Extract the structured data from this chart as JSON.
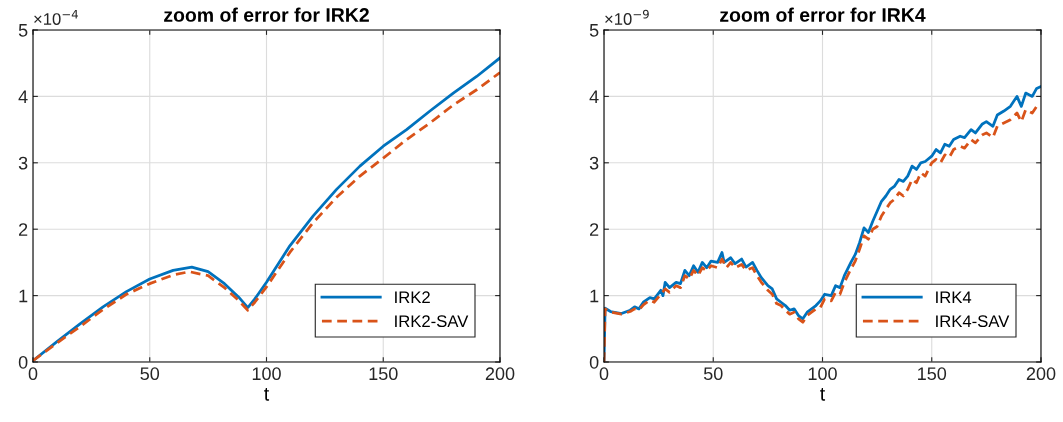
{
  "chart_data": [
    {
      "type": "line",
      "title": "zoom of error for IRK2",
      "xlabel": "t",
      "annotations": [
        "×10$^{−4}$"
      ],
      "xlim": [
        0,
        200
      ],
      "xticks": [
        0,
        50,
        100,
        150,
        200
      ],
      "ylim": [
        0,
        5
      ],
      "yticks": [
        0,
        1,
        2,
        3,
        4,
        5
      ],
      "grid": true,
      "legend": "bottom right",
      "series": [
        {
          "name": "IRK2",
          "color": "#0072bd",
          "line_style": "solid",
          "x": [
            0,
            10,
            20,
            30,
            40,
            50,
            60,
            68,
            75,
            82,
            88,
            92,
            95,
            100,
            110,
            120,
            130,
            140,
            150,
            160,
            170,
            180,
            190,
            200
          ],
          "values": [
            0.02,
            0.3,
            0.57,
            0.83,
            1.06,
            1.25,
            1.38,
            1.43,
            1.36,
            1.18,
            0.98,
            0.82,
            0.95,
            1.2,
            1.75,
            2.2,
            2.6,
            2.95,
            3.25,
            3.5,
            3.78,
            4.05,
            4.3,
            4.58
          ]
        },
        {
          "name": "IRK2-SAV",
          "color": "#d95319",
          "line_style": "dashed",
          "x": [
            0,
            10,
            20,
            30,
            40,
            50,
            60,
            67,
            75,
            82,
            88,
            92,
            95,
            100,
            110,
            120,
            130,
            140,
            150,
            160,
            170,
            180,
            190,
            200
          ],
          "values": [
            0.02,
            0.28,
            0.53,
            0.79,
            1.02,
            1.18,
            1.31,
            1.36,
            1.3,
            1.12,
            0.93,
            0.78,
            0.9,
            1.13,
            1.65,
            2.1,
            2.48,
            2.8,
            3.07,
            3.35,
            3.6,
            3.87,
            4.1,
            4.36
          ]
        }
      ]
    },
    {
      "type": "line",
      "title": "zoom of error for IRK4",
      "xlabel": "t",
      "annotations": [
        "×10$^{−9}$"
      ],
      "xlim": [
        0,
        200
      ],
      "xticks": [
        0,
        50,
        100,
        150,
        200
      ],
      "ylim": [
        0,
        5
      ],
      "yticks": [
        0,
        1,
        2,
        3,
        4,
        5
      ],
      "grid": true,
      "legend": "bottom right",
      "series": [
        {
          "name": "IRK4",
          "color": "#0072bd",
          "line_style": "solid",
          "x": [
            0,
            0.5,
            3,
            8,
            12,
            14,
            16,
            18,
            21,
            23,
            26,
            27,
            28,
            30,
            33,
            35,
            37,
            39,
            41,
            43,
            45,
            47,
            49,
            52,
            54,
            55,
            58,
            60,
            63,
            65,
            68,
            70,
            72,
            75,
            77,
            79,
            81,
            83,
            85,
            87,
            89,
            91,
            93,
            95,
            97,
            99,
            101,
            104,
            106,
            108,
            110,
            113,
            115,
            117,
            119,
            121,
            123,
            125,
            127,
            129,
            131,
            133,
            135,
            137,
            139,
            141,
            143,
            145,
            147,
            150,
            152,
            154,
            156,
            158,
            160,
            163,
            165,
            168,
            170,
            173,
            175,
            178,
            180,
            183,
            186,
            189,
            191,
            193,
            196,
            198,
            200
          ],
          "values": [
            0,
            0.81,
            0.76,
            0.73,
            0.78,
            0.83,
            0.8,
            0.9,
            0.97,
            0.95,
            1.08,
            1.0,
            1.2,
            1.12,
            1.2,
            1.18,
            1.38,
            1.3,
            1.45,
            1.35,
            1.5,
            1.42,
            1.52,
            1.5,
            1.65,
            1.5,
            1.57,
            1.48,
            1.55,
            1.43,
            1.5,
            1.38,
            1.27,
            1.15,
            1.1,
            0.95,
            0.9,
            0.85,
            0.78,
            0.8,
            0.7,
            0.65,
            0.75,
            0.8,
            0.85,
            0.92,
            1.02,
            1.0,
            1.15,
            1.12,
            1.3,
            1.5,
            1.62,
            1.8,
            2.02,
            1.95,
            2.12,
            2.27,
            2.42,
            2.5,
            2.6,
            2.65,
            2.75,
            2.72,
            2.8,
            2.95,
            2.9,
            3.0,
            3.02,
            3.1,
            3.2,
            3.15,
            3.28,
            3.25,
            3.35,
            3.4,
            3.38,
            3.5,
            3.45,
            3.58,
            3.62,
            3.55,
            3.72,
            3.78,
            3.85,
            4.0,
            3.85,
            4.05,
            4.0,
            4.12,
            4.15
          ]
        },
        {
          "name": "IRK4-SAV",
          "color": "#d95319",
          "line_style": "dashed",
          "x": [
            0,
            0.5,
            3,
            8,
            12,
            14,
            16,
            18,
            21,
            23,
            26,
            28,
            30,
            33,
            35,
            37,
            39,
            41,
            43,
            45,
            47,
            49,
            52,
            54,
            56,
            58,
            60,
            63,
            65,
            68,
            70,
            72,
            75,
            77,
            79,
            81,
            83,
            85,
            87,
            89,
            91,
            93,
            95,
            97,
            99,
            101,
            104,
            106,
            108,
            110,
            113,
            115,
            117,
            119,
            121,
            123,
            125,
            127,
            129,
            131,
            133,
            135,
            137,
            139,
            141,
            143,
            145,
            147,
            150,
            152,
            154,
            156,
            158,
            160,
            163,
            165,
            168,
            170,
            173,
            175,
            178,
            180,
            183,
            186,
            189,
            191,
            193,
            196,
            198,
            200
          ],
          "values": [
            0,
            0.8,
            0.75,
            0.72,
            0.76,
            0.8,
            0.78,
            0.86,
            0.93,
            0.9,
            1.02,
            1.1,
            1.05,
            1.15,
            1.12,
            1.3,
            1.25,
            1.38,
            1.3,
            1.42,
            1.37,
            1.45,
            1.42,
            1.55,
            1.42,
            1.5,
            1.42,
            1.47,
            1.38,
            1.42,
            1.3,
            1.2,
            1.08,
            1.02,
            0.88,
            0.85,
            0.78,
            0.72,
            0.75,
            0.65,
            0.6,
            0.7,
            0.75,
            0.8,
            0.82,
            0.95,
            0.92,
            1.05,
            1.02,
            1.2,
            1.4,
            1.52,
            1.7,
            1.9,
            1.85,
            2.0,
            2.04,
            2.2,
            2.3,
            2.4,
            2.45,
            2.55,
            2.5,
            2.6,
            2.75,
            2.7,
            2.85,
            2.8,
            3.0,
            3.05,
            3.0,
            3.12,
            3.08,
            3.2,
            3.25,
            3.22,
            3.35,
            3.3,
            3.42,
            3.45,
            3.38,
            3.55,
            3.6,
            3.65,
            3.75,
            3.62,
            3.8,
            3.75,
            3.85,
            3.87
          ]
        }
      ]
    }
  ]
}
